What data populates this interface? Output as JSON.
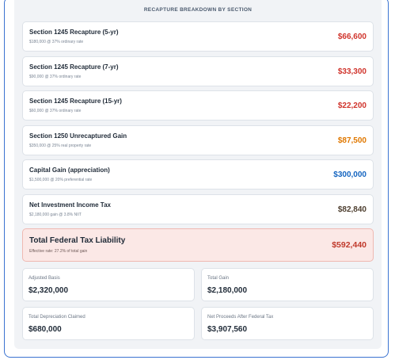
{
  "header": {
    "title": "RECAPTURE BREAKDOWN BY SECTION"
  },
  "items": [
    {
      "label": "Section 1245 Recapture (5-yr)",
      "detail": "$180,000 @ 37% ordinary rate",
      "amount": "$66,600"
    },
    {
      "label": "Section 1245 Recapture (7-yr)",
      "detail": "$90,000 @ 37% ordinary rate",
      "amount": "$33,300"
    },
    {
      "label": "Section 1245 Recapture (15-yr)",
      "detail": "$60,000 @ 37% ordinary rate",
      "amount": "$22,200"
    },
    {
      "label": "Section 1250 Unrecaptured Gain",
      "detail": "$350,000 @ 25% real property rate",
      "amount": "$87,500"
    },
    {
      "label": "Capital Gain (appreciation)",
      "detail": "$1,500,000 @ 20% preferential rate",
      "amount": "$300,000"
    },
    {
      "label": "Net Investment Income Tax",
      "detail": "$2,180,000 gain @ 3.8% NIIT",
      "amount": "$82,840"
    }
  ],
  "total": {
    "label": "Total Federal Tax Liability",
    "detail": "Effective rate: 27.2% of total gain",
    "amount": "$592,440"
  },
  "stats": [
    {
      "label": "Adjusted Basis",
      "value": "$2,320,000"
    },
    {
      "label": "Total Gain",
      "value": "$2,180,000"
    },
    {
      "label": "Total Depreciation Claimed",
      "value": "$680,000"
    },
    {
      "label": "Net Proceeds After Federal Tax",
      "value": "$3,907,560"
    }
  ]
}
